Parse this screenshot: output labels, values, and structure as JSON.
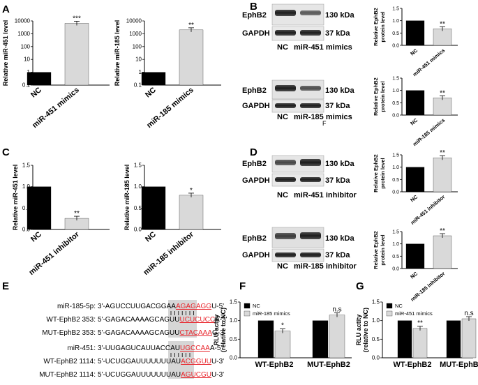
{
  "panels": {
    "A": "A",
    "B": "B",
    "C": "C",
    "D": "D",
    "E": "E",
    "F": "F",
    "G": "G"
  },
  "blots": {
    "b1": {
      "top": "EphB2",
      "bottom": "GAPDH",
      "kda_top": "130 kDa",
      "kda_bottom": "37 kDa",
      "lane_nc": "NC",
      "lane_treat": "miR-451 mimics"
    },
    "b2": {
      "top": "EphB2",
      "bottom": "GAPDH",
      "kda_top": "130 kDa",
      "kda_bottom": "37 kDa",
      "lane_nc": "NC",
      "lane_treat": "miR-185 mimics",
      "stray": "F"
    },
    "d1": {
      "top": "EphB2",
      "bottom": "GAPDH",
      "kda_top": "130 kDa",
      "kda_bottom": "37 kDa",
      "lane_nc": "NC",
      "lane_treat": "miR-451 inhibitor"
    },
    "d2": {
      "top": "EphB2",
      "bottom": "GAPDH",
      "kda_top": "130 kDa",
      "kda_bottom": "37 kDa",
      "lane_nc": "NC",
      "lane_treat": "miR-185 inhibitor"
    }
  },
  "sequences": [
    {
      "label": "miR-185-5p:",
      "pre": "3'-AGUCCUUGACGGAA",
      "hl": "AGAGAGG",
      "post": "U-5'"
    },
    {
      "label": "WT-EphB2 353:",
      "pre": "5'-GAGACAAAAGCAGUU",
      "hl": "UCUCUCC",
      "post": "A-3'"
    },
    {
      "label": "MUT-EphB2 353:",
      "pre": "5'-GAGACAAAAGCAGUU",
      "hl": "CTACAAA",
      "post": "G-3'"
    },
    {
      "label": "miR-451:",
      "pre": "3'-UUGAGUCAUUACCAU",
      "hl": "UGCCAA",
      "post": "A-5'"
    },
    {
      "label": "WT-EphB2 1114:",
      "pre": "5'-UCUGGAUUUUUUUAU",
      "hl": "ACGGUU",
      "post": "U-3'"
    },
    {
      "label": "MUT-EphB2 1114:",
      "pre": "5'-UCUGGAUUUUUUUAU",
      "hl": "AGUCGU",
      "post": "U-3'"
    }
  ],
  "colors": {
    "black_bar": "#000000",
    "grey_bar": "#d9d9d9",
    "highlight_box": "#d3d3d3",
    "seq_red": "#e8262d"
  },
  "chart_data": [
    {
      "id": "A1",
      "type": "bar",
      "categories": [
        "NC",
        "miR-451 mimics"
      ],
      "values": [
        1,
        6500
      ],
      "ylabel": "Relative miR-451 level",
      "yscale": "log",
      "ylim": [
        0.1,
        10000
      ],
      "ticks": [
        "0.1",
        "1",
        "10",
        "100",
        "1000",
        "10000"
      ],
      "sig": [
        "",
        "***"
      ],
      "colors": [
        "#000000",
        "#d9d9d9"
      ],
      "grid": false
    },
    {
      "id": "A2",
      "type": "bar",
      "categories": [
        "NC",
        "miR-185 mimics"
      ],
      "values": [
        1,
        2000
      ],
      "ylabel": "Relative miR-185 level",
      "yscale": "log",
      "ylim": [
        0.1,
        10000
      ],
      "ticks": [
        "0.1",
        "1",
        "10",
        "100",
        "1000",
        "10000"
      ],
      "sig": [
        "",
        "**"
      ],
      "colors": [
        "#000000",
        "#d9d9d9"
      ],
      "grid": false
    },
    {
      "id": "B1",
      "type": "bar",
      "categories": [
        "NC",
        "miR-451 mimics"
      ],
      "values": [
        1.0,
        0.67
      ],
      "ylabel": "Relative EphB2\nprotein level",
      "ylim": [
        0,
        1.5
      ],
      "ticks": [
        "0.0",
        "0.5",
        "1.0",
        "1.5"
      ],
      "sig": [
        "",
        "**"
      ],
      "colors": [
        "#000000",
        "#d9d9d9"
      ],
      "grid": false
    },
    {
      "id": "B2",
      "type": "bar",
      "categories": [
        "NC",
        "miR-185 mimics"
      ],
      "values": [
        1.0,
        0.7
      ],
      "ylabel": "Relative EphB2\nprotein level",
      "ylim": [
        0,
        1.5
      ],
      "ticks": [
        "0.0",
        "0.5",
        "1.0",
        "1.5"
      ],
      "sig": [
        "",
        "**"
      ],
      "colors": [
        "#000000",
        "#d9d9d9"
      ],
      "grid": false
    },
    {
      "id": "C1",
      "type": "bar",
      "categories": [
        "NC",
        "miR-451 inhibitor"
      ],
      "values": [
        1.0,
        0.26
      ],
      "ylabel": "Relative miR-451 level",
      "ylim": [
        0,
        1.5
      ],
      "ticks": [
        "0.0",
        "0.5",
        "1.0",
        "1.5"
      ],
      "sig": [
        "",
        "**"
      ],
      "colors": [
        "#000000",
        "#d9d9d9"
      ],
      "grid": false
    },
    {
      "id": "C2",
      "type": "bar",
      "categories": [
        "NC",
        "miR-185 inhibitor"
      ],
      "values": [
        1.0,
        0.8
      ],
      "ylabel": "Relative miR-185 level",
      "ylim": [
        0,
        1.5
      ],
      "ticks": [
        "0.0",
        "0.5",
        "1.0",
        "1.5"
      ],
      "sig": [
        "",
        "*"
      ],
      "colors": [
        "#000000",
        "#d9d9d9"
      ],
      "grid": false
    },
    {
      "id": "D1",
      "type": "bar",
      "categories": [
        "NC",
        "miR-451 inhibitor"
      ],
      "values": [
        1.0,
        1.38
      ],
      "ylabel": "Relative EphB2\nprotein level",
      "ylim": [
        0,
        1.5
      ],
      "ticks": [
        "0.0",
        "0.5",
        "1.0",
        "1.5"
      ],
      "sig": [
        "",
        "**"
      ],
      "colors": [
        "#000000",
        "#d9d9d9"
      ],
      "grid": false
    },
    {
      "id": "D2",
      "type": "bar",
      "categories": [
        "NC",
        "miR-185 inhibitor"
      ],
      "values": [
        1.0,
        1.33
      ],
      "ylabel": "Relative EphB2\nprotein level",
      "ylim": [
        0,
        1.5
      ],
      "ticks": [
        "0.0",
        "0.5",
        "1.0",
        "1.5"
      ],
      "sig": [
        "",
        "**"
      ],
      "colors": [
        "#000000",
        "#d9d9d9"
      ],
      "grid": false
    },
    {
      "id": "F",
      "type": "bar",
      "categories": [
        "WT-EphB2",
        "MUT-EphB2"
      ],
      "series": [
        {
          "name": "NC",
          "values": [
            1.0,
            1.0
          ]
        },
        {
          "name": "miR-185 mimics",
          "values": [
            0.72,
            1.15
          ]
        }
      ],
      "sig": [
        "*",
        "n.s"
      ],
      "ylabel": "RLU actity\n(relative to NC)",
      "ylim": [
        0,
        1.5
      ],
      "ticks": [
        "0.0",
        "0.5",
        "1.0",
        "1.5"
      ],
      "legend": "top-left",
      "colors": [
        "#000000",
        "#d9d9d9"
      ],
      "grid": false
    },
    {
      "id": "G",
      "type": "bar",
      "categories": [
        "WT-EphB2",
        "MUT-EphB2"
      ],
      "series": [
        {
          "name": "NC",
          "values": [
            1.0,
            1.0
          ]
        },
        {
          "name": "miR-451 mimics",
          "values": [
            0.79,
            1.05
          ]
        }
      ],
      "sig": [
        "**",
        "n.s"
      ],
      "ylabel": "RLU actity\n(relative to NC)",
      "ylim": [
        0,
        1.5
      ],
      "ticks": [
        "0.0",
        "0.5",
        "1.0",
        "1.5"
      ],
      "legend": "top-left",
      "colors": [
        "#000000",
        "#d9d9d9"
      ],
      "grid": false
    }
  ]
}
